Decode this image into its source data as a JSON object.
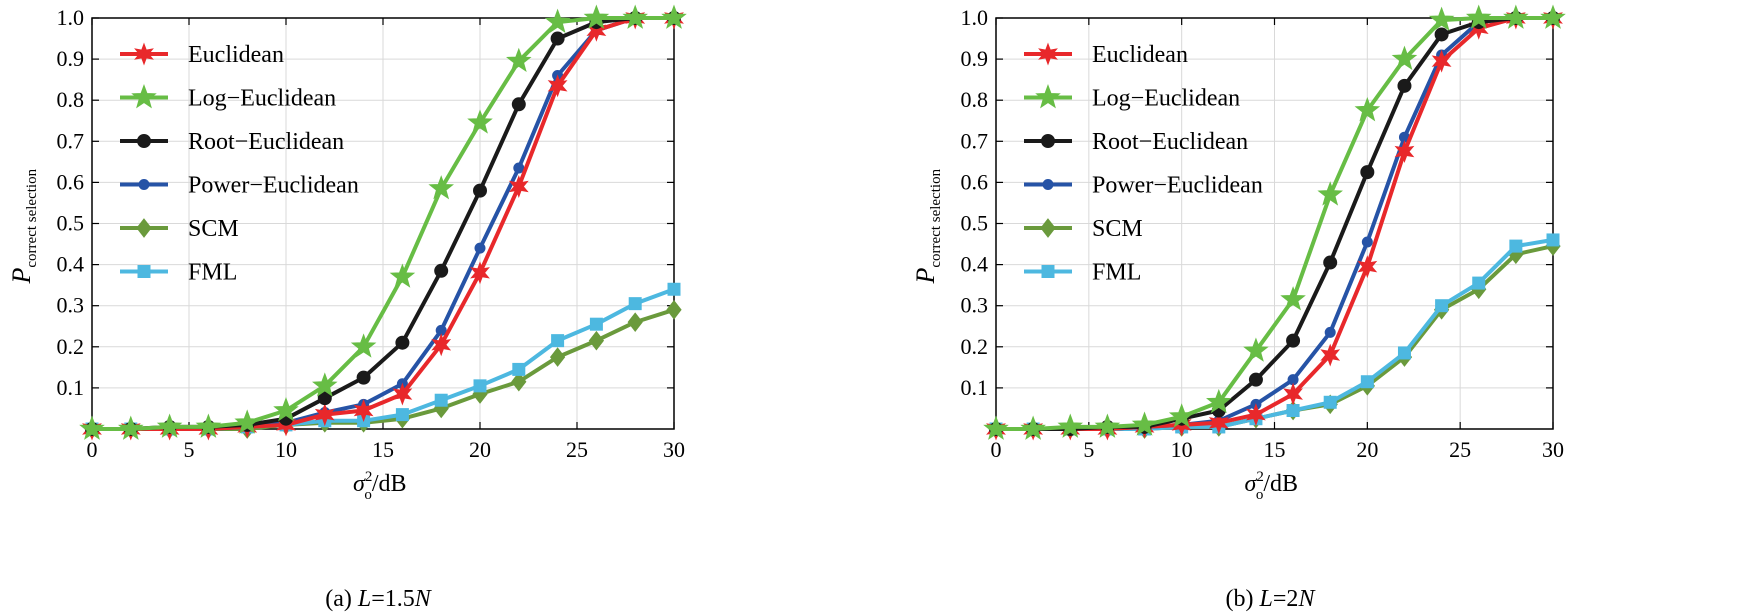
{
  "chart_data": [
    {
      "type": "line",
      "caption_prefix": "(a) ",
      "caption_var": "L",
      "caption_rest": "=1.5",
      "caption_var2": "N",
      "ylabel_main": "P",
      "ylabel_sub": "correct selection",
      "xlabel_sigma": "σ",
      "xlabel_sup": "2",
      "xlabel_sub": "o",
      "xlabel_rest": "/dB",
      "xlim": [
        0,
        30
      ],
      "ylim": [
        0,
        1.0
      ],
      "xticks": [
        "0",
        "5",
        "10",
        "15",
        "20",
        "25",
        "30"
      ],
      "yticks": [
        "0.1",
        "0.2",
        "0.3",
        "0.4",
        "0.5",
        "0.6",
        "0.7",
        "0.8",
        "0.9",
        "1.0"
      ],
      "grid": true,
      "legend_position": "top-left",
      "x": [
        0,
        2,
        4,
        6,
        8,
        10,
        12,
        14,
        16,
        18,
        20,
        22,
        24,
        26,
        28,
        30
      ],
      "series": [
        {
          "name": "Euclidean",
          "color": "#e8282b",
          "marker": "star6",
          "values": [
            0.0,
            0.0,
            0.0,
            0.0,
            0.005,
            0.01,
            0.035,
            0.045,
            0.085,
            0.205,
            0.38,
            0.59,
            0.835,
            0.97,
            1.0,
            1.0
          ]
        },
        {
          "name": "Log−Euclidean",
          "color": "#67bd45",
          "marker": "star5",
          "values": [
            0.0,
            0.0,
            0.005,
            0.005,
            0.015,
            0.045,
            0.105,
            0.2,
            0.37,
            0.585,
            0.745,
            0.895,
            0.99,
            1.0,
            1.0,
            1.0
          ]
        },
        {
          "name": "Root−Euclidean",
          "color": "#1a1a1a",
          "marker": "circle",
          "values": [
            0.0,
            0.0,
            0.005,
            0.005,
            0.01,
            0.025,
            0.075,
            0.125,
            0.21,
            0.385,
            0.58,
            0.79,
            0.95,
            0.99,
            1.0,
            1.0
          ]
        },
        {
          "name": "Power−Euclidean",
          "color": "#2653a6",
          "marker": "smallcircle",
          "values": [
            0.0,
            0.0,
            0.0,
            0.0,
            0.005,
            0.015,
            0.04,
            0.06,
            0.11,
            0.24,
            0.44,
            0.635,
            0.86,
            0.97,
            1.0,
            1.0
          ]
        },
        {
          "name": "SCM",
          "color": "#6a9a3c",
          "marker": "diamond",
          "values": [
            0.0,
            0.0,
            0.0,
            0.0,
            0.0,
            0.01,
            0.015,
            0.015,
            0.025,
            0.05,
            0.085,
            0.115,
            0.175,
            0.215,
            0.26,
            0.29
          ]
        },
        {
          "name": "FML",
          "color": "#4db8e0",
          "marker": "square",
          "values": [
            0.0,
            0.0,
            0.0,
            0.0,
            0.005,
            0.01,
            0.02,
            0.02,
            0.035,
            0.07,
            0.105,
            0.145,
            0.215,
            0.255,
            0.305,
            0.34
          ]
        }
      ]
    },
    {
      "type": "line",
      "caption_prefix": "(b) ",
      "caption_var": "L",
      "caption_rest": "=2",
      "caption_var2": "N",
      "ylabel_main": "P",
      "ylabel_sub": "correct selection",
      "xlabel_sigma": "σ",
      "xlabel_sup": "2",
      "xlabel_sub": "o",
      "xlabel_rest": "/dB",
      "xlim": [
        0,
        30
      ],
      "ylim": [
        0,
        1.0
      ],
      "xticks": [
        "0",
        "5",
        "10",
        "15",
        "20",
        "25",
        "30"
      ],
      "yticks": [
        "0.1",
        "0.2",
        "0.3",
        "0.4",
        "0.5",
        "0.6",
        "0.7",
        "0.8",
        "0.9",
        "1.0"
      ],
      "grid": true,
      "legend_position": "top-left",
      "x": [
        0,
        2,
        4,
        6,
        8,
        10,
        12,
        14,
        16,
        18,
        20,
        22,
        24,
        26,
        28,
        30
      ],
      "series": [
        {
          "name": "Euclidean",
          "color": "#e8282b",
          "marker": "star6",
          "values": [
            0.0,
            0.0,
            0.0,
            0.0,
            0.005,
            0.01,
            0.015,
            0.035,
            0.085,
            0.18,
            0.395,
            0.675,
            0.895,
            0.975,
            1.0,
            1.0
          ]
        },
        {
          "name": "Log−Euclidean",
          "color": "#67bd45",
          "marker": "star5",
          "values": [
            0.0,
            0.0,
            0.005,
            0.005,
            0.01,
            0.03,
            0.065,
            0.19,
            0.315,
            0.57,
            0.775,
            0.9,
            0.995,
            1.0,
            1.0,
            1.0
          ]
        },
        {
          "name": "Root−Euclidean",
          "color": "#1a1a1a",
          "marker": "circle",
          "values": [
            0.0,
            0.0,
            0.0,
            0.005,
            0.005,
            0.025,
            0.045,
            0.12,
            0.215,
            0.405,
            0.625,
            0.835,
            0.96,
            0.99,
            1.0,
            1.0
          ]
        },
        {
          "name": "Power−Euclidean",
          "color": "#2653a6",
          "marker": "smallcircle",
          "values": [
            0.0,
            0.0,
            0.0,
            0.0,
            0.005,
            0.01,
            0.02,
            0.06,
            0.12,
            0.235,
            0.455,
            0.71,
            0.91,
            0.99,
            1.0,
            1.0
          ]
        },
        {
          "name": "SCM",
          "color": "#6a9a3c",
          "marker": "diamond",
          "values": [
            0.0,
            0.0,
            0.0,
            0.0,
            0.0,
            0.005,
            0.005,
            0.025,
            0.045,
            0.06,
            0.105,
            0.175,
            0.29,
            0.34,
            0.425,
            0.445
          ]
        },
        {
          "name": "FML",
          "color": "#4db8e0",
          "marker": "square",
          "values": [
            0.0,
            0.0,
            0.0,
            0.0,
            0.0,
            0.005,
            0.005,
            0.025,
            0.045,
            0.065,
            0.115,
            0.185,
            0.3,
            0.355,
            0.445,
            0.46
          ]
        }
      ]
    }
  ]
}
